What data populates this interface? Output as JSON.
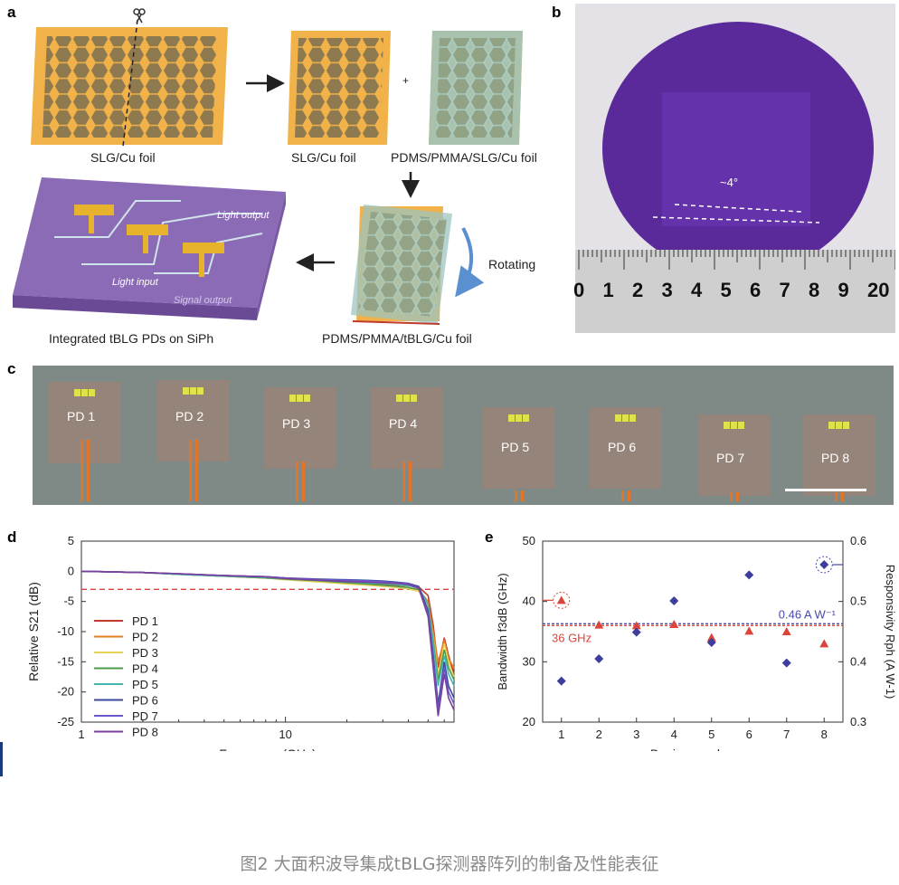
{
  "panel_labels": {
    "a": "a",
    "b": "b",
    "c": "c",
    "d": "d",
    "e": "e"
  },
  "panel_a": {
    "foil1_label": "SLG/Cu foil",
    "foil2_label": "SLG/Cu foil",
    "plus": "+",
    "foil3_label": "PDMS/PMMA/SLG/Cu foil",
    "rotating": "Rotating",
    "foil4_label": "PDMS/PMMA/tBLG/Cu foil",
    "chip_label": "Integrated tBLG PDs on SiPh",
    "light_output": "Light output",
    "light_input": "Light input",
    "signal_output": "Signal output",
    "scissors_icon": "scissors-icon",
    "colors": {
      "cu": "#f2b24a",
      "graphene": "#8e7a4e",
      "pdms": "#9cc4c0",
      "chip": "#8b6bb5",
      "gold": "#e8b32c"
    }
  },
  "panel_b": {
    "angle_label": "~4°",
    "ruler_numbers": [
      "0",
      "1",
      "2",
      "3",
      "4",
      "5",
      "6",
      "7",
      "8",
      "9",
      "20"
    ],
    "wafer_color": "#5a2a9a"
  },
  "panel_c": {
    "pd_labels": [
      "PD 1",
      "PD 2",
      "PD 3",
      "PD 4",
      "PD 5",
      "PD 6",
      "PD 7",
      "PD 8"
    ]
  },
  "panel_d": {
    "chart_data": {
      "type": "line",
      "xlabel": "Frequency (GHz)",
      "ylabel": "Relative S21 (dB)",
      "x_scale": "log",
      "xlim": [
        1,
        67
      ],
      "ylim": [
        -25,
        5
      ],
      "x_ticks": [
        "1",
        "10"
      ],
      "y_ticks": [
        "5",
        "0",
        "-5",
        "-10",
        "-15",
        "-20",
        "-25"
      ],
      "reference_line_db": -3,
      "x": [
        1,
        2,
        3,
        5,
        8,
        10,
        15,
        20,
        25,
        30,
        35,
        40,
        45,
        50,
        53,
        56,
        60,
        63,
        67
      ],
      "series": [
        {
          "name": "PD 1",
          "color": "#c0392b",
          "values": [
            0,
            -0.2,
            -0.5,
            -0.8,
            -1.1,
            -1.3,
            -1.6,
            -1.8,
            -2.0,
            -2.1,
            -2.3,
            -2.4,
            -2.6,
            -4.0,
            -9.0,
            -16.0,
            -11.0,
            -14.0,
            -17.0
          ]
        },
        {
          "name": "PD 2",
          "color": "#e67e22",
          "values": [
            0,
            -0.2,
            -0.5,
            -0.8,
            -1.1,
            -1.3,
            -1.7,
            -2.0,
            -2.2,
            -2.4,
            -2.6,
            -2.8,
            -3.0,
            -5.0,
            -10.0,
            -15.0,
            -11.5,
            -14.5,
            -16.0
          ]
        },
        {
          "name": "PD 3",
          "color": "#e7d35a",
          "values": [
            0,
            -0.2,
            -0.5,
            -0.8,
            -1.1,
            -1.4,
            -1.8,
            -2.1,
            -2.3,
            -2.5,
            -2.7,
            -2.9,
            -3.3,
            -6.0,
            -11.0,
            -17.0,
            -12.0,
            -15.0,
            -17.5
          ]
        },
        {
          "name": "PD 4",
          "color": "#4e9a4e",
          "values": [
            0,
            -0.2,
            -0.5,
            -0.8,
            -1.1,
            -1.3,
            -1.6,
            -1.9,
            -2.1,
            -2.3,
            -2.5,
            -2.7,
            -3.0,
            -5.5,
            -11.5,
            -18.0,
            -13.0,
            -16.0,
            -18.0
          ]
        },
        {
          "name": "PD 5",
          "color": "#45b7b0",
          "values": [
            0,
            -0.2,
            -0.5,
            -0.8,
            -1.0,
            -1.2,
            -1.5,
            -1.7,
            -1.9,
            -2.0,
            -2.2,
            -2.4,
            -2.7,
            -5.5,
            -12.0,
            -19.0,
            -14.0,
            -17.0,
            -19.0
          ]
        },
        {
          "name": "PD 6",
          "color": "#3a4aa0",
          "values": [
            0,
            -0.2,
            -0.4,
            -0.7,
            -0.9,
            -1.1,
            -1.3,
            -1.4,
            -1.5,
            -1.6,
            -1.8,
            -2.0,
            -2.5,
            -6.5,
            -14.0,
            -22.0,
            -15.0,
            -19.0,
            -21.0
          ]
        },
        {
          "name": "PD 7",
          "color": "#6a5acd",
          "values": [
            0,
            -0.2,
            -0.4,
            -0.7,
            -0.9,
            -1.1,
            -1.4,
            -1.5,
            -1.6,
            -1.7,
            -1.9,
            -2.1,
            -2.7,
            -7.0,
            -15.0,
            -23.0,
            -16.0,
            -20.0,
            -22.0
          ]
        },
        {
          "name": "PD 8",
          "color": "#7b3f9e",
          "values": [
            0,
            -0.2,
            -0.4,
            -0.7,
            -0.9,
            -1.2,
            -1.5,
            -1.7,
            -1.8,
            -1.9,
            -2.0,
            -2.2,
            -2.8,
            -7.5,
            -16.0,
            -24.0,
            -17.0,
            -21.0,
            -23.0
          ]
        }
      ]
    }
  },
  "panel_e": {
    "chart_data": {
      "type": "scatter",
      "xlabel": "Device number",
      "ylabel_left": "Bandwidth f3dB (GHz)",
      "ylabel_right": "Responsivity Rph (A W-1)",
      "xlim": [
        0.5,
        8.5
      ],
      "ylim_left": [
        20,
        50
      ],
      "ylim_right": [
        0.3,
        0.6
      ],
      "categories": [
        1,
        2,
        3,
        4,
        5,
        6,
        7,
        8
      ],
      "x_ticks": [
        "1",
        "2",
        "3",
        "4",
        "5",
        "6",
        "7",
        "8"
      ],
      "y_ticks_left": [
        "20",
        "30",
        "40",
        "50"
      ],
      "y_ticks_right": [
        "0.3",
        "0.4",
        "0.5",
        "0.6"
      ],
      "series": [
        {
          "name": "Bandwidth",
          "axis": "left",
          "marker": "triangle",
          "color": "#d9453a",
          "values": [
            40.2,
            36.1,
            36.0,
            36.2,
            34.0,
            35.1,
            35.0,
            33.0
          ]
        },
        {
          "name": "Responsivity",
          "axis": "right",
          "marker": "diamond",
          "color": "#3d3d9e",
          "values": [
            0.368,
            0.405,
            0.449,
            0.501,
            0.432,
            0.544,
            0.398,
            0.561
          ]
        }
      ],
      "annotations": {
        "bandwidth_line": "36 GHz",
        "responsivity_line": "0.46 A W⁻¹"
      },
      "reference_lines": {
        "bandwidth_ghz": 36,
        "responsivity": 0.46
      }
    }
  },
  "caption": "图2 大面积波导集成tBLG探测器阵列的制备及性能表征"
}
